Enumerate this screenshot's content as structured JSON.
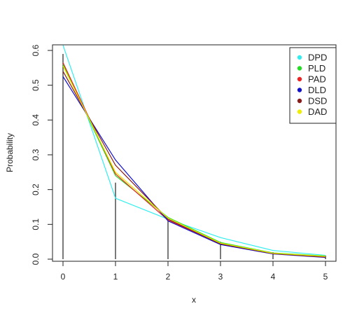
{
  "chart_data": {
    "type": "line",
    "xlabel": "x",
    "ylabel": "Probability",
    "x": [
      0,
      1,
      2,
      3,
      4,
      5
    ],
    "xlim": [
      0,
      5
    ],
    "ylim": [
      0,
      0.6
    ],
    "x_ticks": [
      "0",
      "1",
      "2",
      "3",
      "4",
      "5"
    ],
    "y_ticks": [
      "0.0",
      "0.1",
      "0.2",
      "0.3",
      "0.4",
      "0.5",
      "0.6"
    ],
    "observed": [
      0.59,
      0.22,
      0.11,
      0.05,
      0.02,
      0.01
    ],
    "legend_position": "top-right",
    "grid": false,
    "series": [
      {
        "name": "DPD",
        "color": "#33EEEE",
        "values": [
          0.615,
          0.175,
          0.115,
          0.062,
          0.025,
          0.011
        ]
      },
      {
        "name": "PLD",
        "color": "#22DD22",
        "values": [
          0.56,
          0.24,
          0.12,
          0.048,
          0.018,
          0.009
        ]
      },
      {
        "name": "PAD",
        "color": "#EE2222",
        "values": [
          0.565,
          0.245,
          0.112,
          0.045,
          0.017,
          0.006
        ]
      },
      {
        "name": "DLD",
        "color": "#1111CC",
        "values": [
          0.525,
          0.285,
          0.11,
          0.042,
          0.015,
          0.005
        ]
      },
      {
        "name": "DSD",
        "color": "#8B1A1A",
        "values": [
          0.54,
          0.27,
          0.115,
          0.044,
          0.016,
          0.006
        ]
      },
      {
        "name": "DAD",
        "color": "#EEEE00",
        "values": [
          0.555,
          0.25,
          0.118,
          0.046,
          0.017,
          0.008
        ]
      }
    ]
  }
}
